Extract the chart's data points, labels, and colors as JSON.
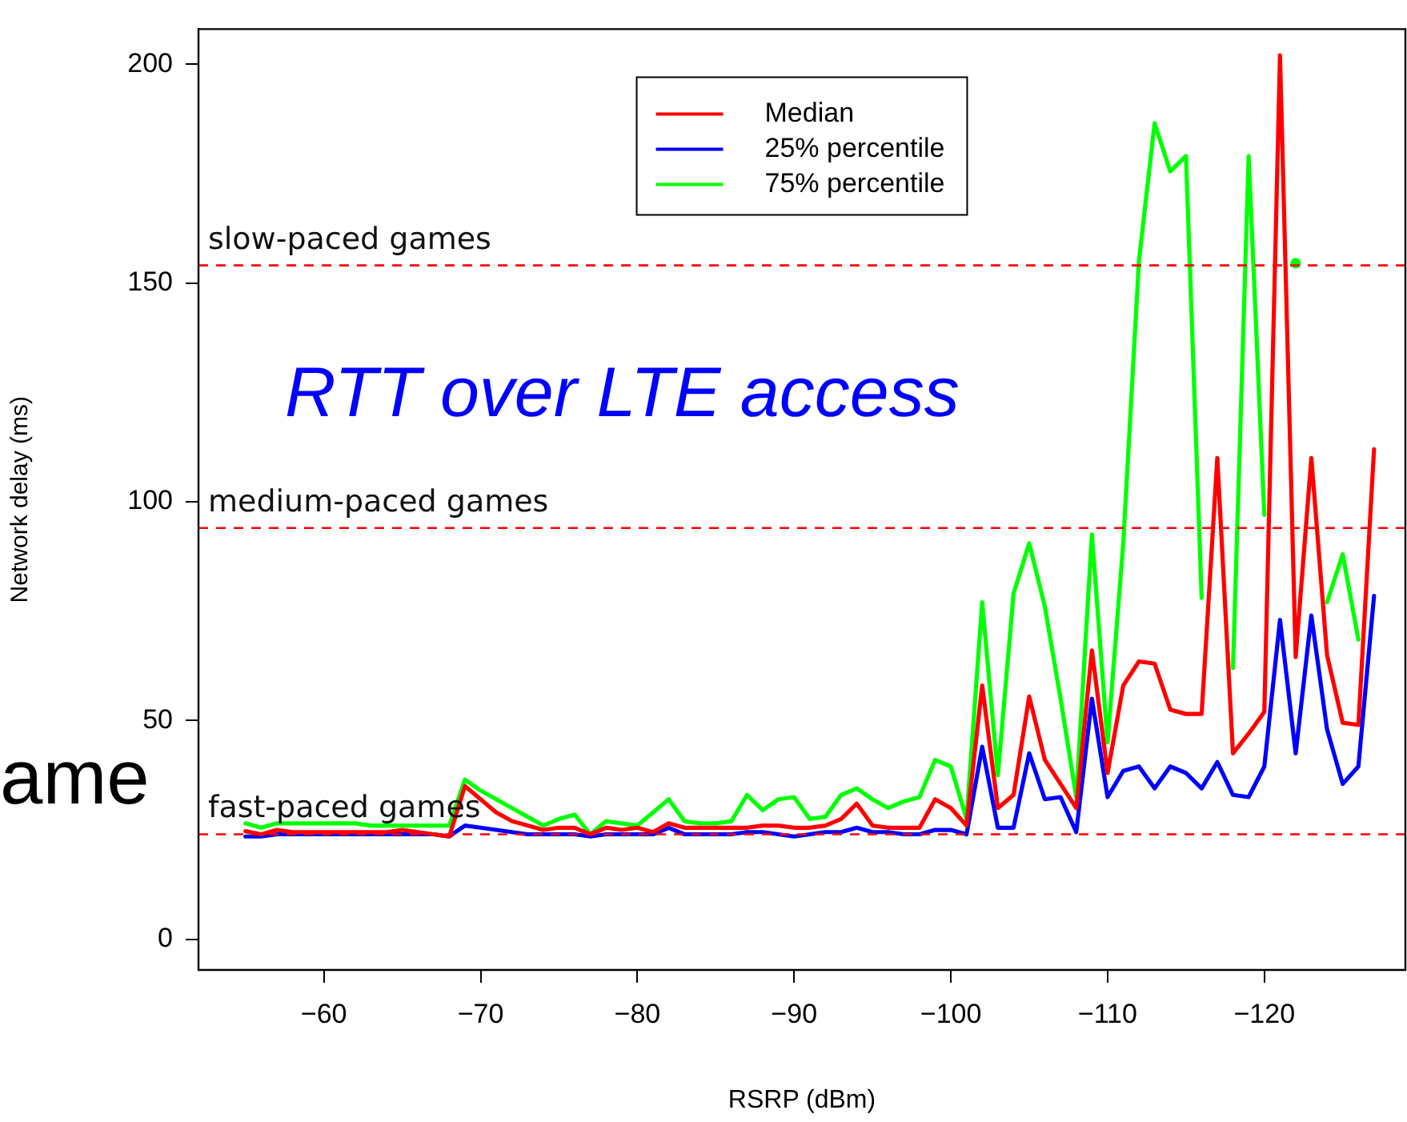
{
  "chart_data": {
    "type": "line",
    "xlabel": "RSRP (dBm)",
    "ylabel": "Network delay (ms)",
    "x": [
      -55,
      -56,
      -57,
      -58,
      -59,
      -60,
      -61,
      -62,
      -63,
      -64,
      -65,
      -66,
      -67,
      -68,
      -69,
      -70,
      -71,
      -72,
      -73,
      -74,
      -75,
      -76,
      -77,
      -78,
      -79,
      -80,
      -81,
      -82,
      -83,
      -84,
      -85,
      -86,
      -87,
      -88,
      -89,
      -90,
      -91,
      -92,
      -93,
      -94,
      -95,
      -96,
      -97,
      -98,
      -99,
      -100,
      -101,
      -102,
      -103,
      -104,
      -105,
      -106,
      -107,
      -108,
      -109,
      -110,
      -111,
      -112,
      -113,
      -114,
      -115,
      -116,
      -117,
      -118,
      -119,
      -120,
      -121,
      -122,
      -123,
      -124,
      -125,
      -126,
      -127
    ],
    "series": [
      {
        "name": "Median",
        "color": "#ff0000",
        "values": [
          24.7,
          24,
          25,
          24.5,
          24.5,
          24.5,
          24.5,
          24.5,
          24.5,
          24.5,
          25,
          24.5,
          24,
          23.5,
          35,
          32,
          29,
          27,
          26,
          25,
          25.5,
          25.5,
          24,
          25.5,
          25,
          25.5,
          24.5,
          26.5,
          25.5,
          25.5,
          25.5,
          25.5,
          25.5,
          26,
          26,
          25.5,
          25.5,
          26,
          27.5,
          31,
          26,
          25.5,
          25.5,
          25.5,
          32,
          30,
          26,
          58,
          30,
          33,
          55.5,
          41,
          35.5,
          30,
          66,
          38,
          58,
          63.5,
          63,
          52.5,
          51.5,
          51.5,
          110,
          42.5,
          47,
          52,
          202,
          64.5,
          110,
          65,
          49.5,
          49,
          112
        ]
      },
      {
        "name": "25% percentile",
        "color": "#0000ff",
        "values": [
          23.5,
          23.5,
          24,
          24,
          24,
          24,
          24,
          24,
          24,
          24,
          24,
          24,
          24,
          23.5,
          26,
          25.5,
          25,
          24.5,
          24,
          24,
          24,
          24,
          23.5,
          24,
          24,
          24,
          24,
          25.5,
          24,
          24,
          24,
          24,
          24.5,
          24.5,
          24,
          23.5,
          24,
          24.5,
          24.5,
          25.5,
          24.5,
          24.5,
          24,
          24,
          25,
          25,
          24,
          44,
          25.5,
          25.5,
          42.5,
          32,
          32.5,
          24.5,
          55,
          32.5,
          38.5,
          39.5,
          34.5,
          39.5,
          38,
          34.5,
          40.5,
          33,
          32.5,
          39.5,
          73,
          42.5,
          74,
          48,
          35.5,
          39.5,
          78.5
        ]
      },
      {
        "name": "75% percentile",
        "color": "#00ff00",
        "values": [
          26.5,
          25.5,
          26.5,
          26.5,
          26.5,
          26.5,
          26.5,
          26.5,
          26,
          26,
          26,
          26,
          26,
          26,
          36.5,
          34,
          32,
          30,
          28,
          26,
          27.5,
          28.5,
          24,
          27,
          26.5,
          26,
          29,
          32,
          27,
          26.5,
          26.5,
          27,
          33,
          29.5,
          32,
          32.5,
          27.5,
          28,
          33,
          34.5,
          32,
          30,
          31.5,
          32.5,
          41,
          39.5,
          27.5,
          77,
          37.5,
          79,
          90.5,
          76,
          55,
          32.5,
          92.5,
          45,
          90.5,
          155,
          186.5,
          175.5,
          179,
          78,
          null,
          62,
          179,
          97,
          null,
          154.5,
          null,
          77,
          88,
          68.5,
          null
        ]
      }
    ],
    "xlim": [
      -52,
      -129
    ],
    "xticks": [
      {
        "value": -60,
        "label": "−60"
      },
      {
        "value": -70,
        "label": "−70"
      },
      {
        "value": -80,
        "label": "−80"
      },
      {
        "value": -90,
        "label": "−90"
      },
      {
        "value": -100,
        "label": "−100"
      },
      {
        "value": -110,
        "label": "−110"
      },
      {
        "value": -120,
        "label": "−120"
      }
    ],
    "ylim": [
      -7,
      208
    ],
    "yticks": [
      0,
      50,
      100,
      150,
      200
    ],
    "ref_lines": [
      {
        "axis": "y",
        "value": 24,
        "label": "fast-paced games",
        "color": "#ff0000",
        "line_style": "dashed"
      },
      {
        "axis": "y",
        "value": 94,
        "label": "medium-paced games",
        "color": "#ff0000",
        "line_style": "dashed"
      },
      {
        "axis": "y",
        "value": 154,
        "label": "slow-paced games",
        "color": "#ff0000",
        "line_style": "dashed"
      }
    ],
    "annotations": [
      "RTT over LTE access",
      "ame"
    ],
    "legend": "top",
    "grid": false,
    "marker": "none",
    "line_style": "solid"
  }
}
